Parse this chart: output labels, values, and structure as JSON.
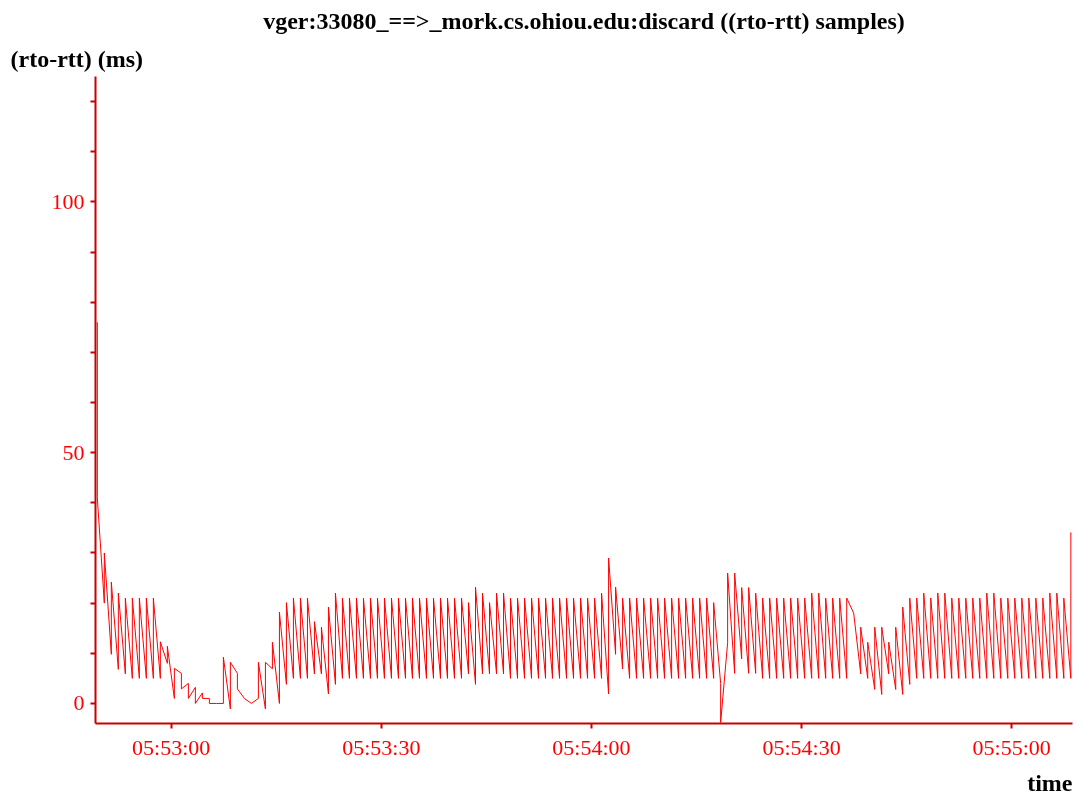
{
  "chart_data": {
    "type": "line",
    "title": "vger:33080_==>_mork.cs.ohiou.edu:discard ((rto-rtt) samples)",
    "ylabel": "(rto-rtt) (ms)",
    "xlabel": "time",
    "xlim": [
      5.88033,
      5.91908
    ],
    "ylim": [
      -4,
      125
    ],
    "xticks": [
      {
        "value": 5.883333,
        "label": "05:53:00"
      },
      {
        "value": 5.891667,
        "label": "05:53:30"
      },
      {
        "value": 5.9,
        "label": "05:54:00"
      },
      {
        "value": 5.908333,
        "label": "05:54:30"
      },
      {
        "value": 5.916667,
        "label": "05:55:00"
      }
    ],
    "yticks": [
      0,
      {
        "value": 10,
        "label": null
      },
      {
        "value": 20,
        "label": null
      },
      {
        "value": 30,
        "label": null
      },
      {
        "value": 40,
        "label": null
      },
      50,
      {
        "value": 60,
        "label": null
      },
      {
        "value": 70,
        "label": null
      },
      {
        "value": 80,
        "label": null
      },
      {
        "value": 90,
        "label": null
      },
      100,
      {
        "value": 110,
        "label": null
      },
      {
        "value": 120,
        "label": null
      }
    ],
    "line_style": "solid",
    "series": [
      {
        "color": "#ff0000",
        "x": [
          5.880402,
          5.880402,
          5.88068,
          5.88068,
          5.880958,
          5.880958,
          5.881236,
          5.881236,
          5.881514,
          5.881514,
          5.881791,
          5.881791,
          5.882069,
          5.882069,
          5.882347,
          5.882347,
          5.882625,
          5.882625,
          5.882902,
          5.882902,
          5.88318,
          5.88318,
          5.883458,
          5.883458,
          5.883736,
          5.883736,
          5.884014,
          5.884014,
          5.884291,
          5.884291,
          5.884569,
          5.884569,
          5.884847,
          5.884847,
          5.885125,
          5.885402,
          5.885402,
          5.88568,
          5.88568,
          5.885958,
          5.885958,
          5.886236,
          5.886514,
          5.886791,
          5.886791,
          5.887069,
          5.887069,
          5.887347,
          5.887347,
          5.887625,
          5.887625,
          5.887902,
          5.887902,
          5.88818,
          5.88818,
          5.888458,
          5.888458,
          5.888736,
          5.888736,
          5.889014,
          5.889014,
          5.889291,
          5.889291,
          5.889569,
          5.889569,
          5.889847,
          5.889847,
          5.890125,
          5.890125,
          5.890402,
          5.890402,
          5.89068,
          5.89068,
          5.890958,
          5.890958,
          5.891236,
          5.891236,
          5.891514,
          5.891514,
          5.891791,
          5.891791,
          5.892069,
          5.892069,
          5.892347,
          5.892347,
          5.892625,
          5.892625,
          5.892902,
          5.892902,
          5.89318,
          5.89318,
          5.893458,
          5.893458,
          5.893736,
          5.893736,
          5.894014,
          5.894014,
          5.894291,
          5.894291,
          5.894569,
          5.894569,
          5.894847,
          5.894847,
          5.895125,
          5.895125,
          5.895402,
          5.895402,
          5.89568,
          5.89568,
          5.895958,
          5.895958,
          5.896236,
          5.896236,
          5.896514,
          5.896514,
          5.896791,
          5.896791,
          5.897069,
          5.897069,
          5.897347,
          5.897347,
          5.897625,
          5.897625,
          5.897902,
          5.897902,
          5.89818,
          5.89818,
          5.898458,
          5.898458,
          5.898736,
          5.898736,
          5.899014,
          5.899014,
          5.899291,
          5.899291,
          5.899569,
          5.899569,
          5.899847,
          5.899847,
          5.900125,
          5.900125,
          5.900402,
          5.900402,
          5.90068,
          5.90068,
          5.900958,
          5.900958,
          5.901236,
          5.901236,
          5.901514,
          5.901514,
          5.901791,
          5.901791,
          5.902069,
          5.902069,
          5.902347,
          5.902347,
          5.902625,
          5.902625,
          5.902902,
          5.902902,
          5.90318,
          5.90318,
          5.903458,
          5.903458,
          5.903736,
          5.903736,
          5.904014,
          5.904014,
          5.904291,
          5.904291,
          5.904569,
          5.904569,
          5.904847,
          5.904847,
          5.905125,
          5.905125,
          5.905402,
          5.905402,
          5.90568,
          5.90568,
          5.905958,
          5.905958,
          5.906236,
          5.906236,
          5.906514,
          5.906514,
          5.906791,
          5.906791,
          5.907069,
          5.907069,
          5.907347,
          5.907347,
          5.907625,
          5.907625,
          5.907902,
          5.907902,
          5.90818,
          5.90818,
          5.908458,
          5.908458,
          5.908736,
          5.908736,
          5.909014,
          5.909014,
          5.909291,
          5.909291,
          5.909569,
          5.909569,
          5.909847,
          5.909847,
          5.910125,
          5.910125,
          5.910402,
          5.91068,
          5.91068,
          5.910958,
          5.910958,
          5.911236,
          5.911236,
          5.911514,
          5.911514,
          5.911791,
          5.911791,
          5.912069,
          5.912069,
          5.912347,
          5.912347,
          5.912625,
          5.912625,
          5.912902,
          5.912902,
          5.91318,
          5.91318,
          5.913458,
          5.913458,
          5.913736,
          5.913736,
          5.914014,
          5.914014,
          5.914291,
          5.914291,
          5.914569,
          5.914569,
          5.914847,
          5.914847,
          5.915125,
          5.915125,
          5.915402,
          5.915402,
          5.91568,
          5.91568,
          5.915958,
          5.915958,
          5.916236,
          5.916236,
          5.916514,
          5.916514,
          5.916791,
          5.916791,
          5.917069,
          5.917069,
          5.917347,
          5.917347,
          5.917625,
          5.917625,
          5.917902,
          5.917902,
          5.91818,
          5.91818,
          5.918458,
          5.918458,
          5.918736,
          5.918736,
          5.919014,
          5.919014
        ],
        "values": [
          76,
          41,
          20,
          30,
          9.8,
          24.2,
          6.8,
          22,
          5.9,
          21,
          5,
          21,
          5,
          21,
          5,
          21,
          5,
          21,
          5,
          12.3,
          8,
          11.4,
          1,
          7,
          6,
          2.9,
          4,
          1,
          3.2,
          0,
          2.1,
          1,
          1,
          0,
          0,
          0,
          9.2,
          -1.1,
          8.2,
          6,
          2.9,
          1,
          0,
          1,
          8.2,
          -1.1,
          8.2,
          6.9,
          12.2,
          0,
          18.2,
          3.8,
          20.1,
          5,
          21,
          5,
          21,
          5,
          21,
          5.9,
          16.3,
          5.9,
          15.2,
          1.9,
          19.2,
          3.8,
          22,
          5,
          21,
          5,
          21,
          5,
          21,
          5,
          21,
          5,
          21,
          5,
          21,
          5,
          21,
          5,
          21,
          5,
          21,
          5,
          21,
          5,
          21,
          5,
          21,
          5,
          21,
          5,
          21,
          5,
          21,
          5,
          21,
          5,
          21,
          5,
          21,
          5.9,
          20.1,
          3.8,
          23.2,
          5.9,
          22,
          5.9,
          20.1,
          5.9,
          22,
          5.9,
          22,
          5,
          21,
          5,
          21,
          5,
          21,
          5,
          21,
          5,
          21,
          5,
          21,
          5,
          21,
          5,
          21,
          5,
          21,
          5,
          21,
          5,
          21,
          5,
          21,
          5,
          21,
          5,
          22,
          1.9,
          29,
          9.8,
          23.2,
          6.9,
          21,
          5,
          21,
          5,
          21,
          5,
          21,
          5,
          21,
          5,
          21,
          5,
          21,
          5,
          21,
          5,
          21,
          5,
          21,
          5,
          21,
          5,
          21,
          5,
          21,
          5,
          20.1,
          4,
          -3.8,
          12.1,
          26,
          6,
          26,
          8.9,
          23.1,
          6,
          23.1,
          6,
          22,
          5,
          21,
          5,
          21,
          5,
          21,
          5,
          21,
          5,
          21,
          5,
          21,
          5,
          21,
          5,
          22,
          5,
          22,
          5,
          21,
          5,
          21,
          5,
          21,
          5,
          21,
          18,
          5.9,
          15.2,
          5,
          12.2,
          2.8,
          15.2,
          1.8,
          15.2,
          5.9,
          12.2,
          2.8,
          15.2,
          1.8,
          19.2,
          3.8,
          21,
          5,
          21,
          5,
          22,
          5,
          21,
          5,
          22,
          5,
          22,
          5,
          21,
          5,
          21,
          5,
          21,
          5,
          21,
          5,
          21,
          5,
          22,
          5,
          22,
          5,
          21,
          5,
          21,
          5,
          21,
          5,
          21,
          5,
          21,
          5,
          21,
          5,
          21,
          5,
          22,
          5,
          22,
          5,
          21,
          5,
          34.1
        ]
      }
    ]
  }
}
